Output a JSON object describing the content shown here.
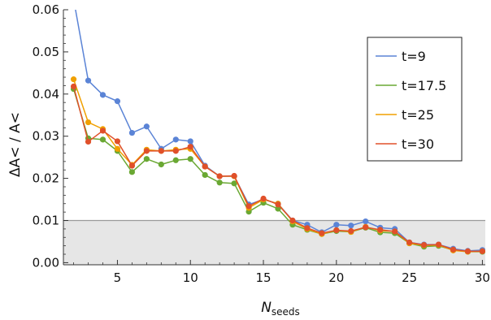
{
  "chart_data": {
    "type": "line",
    "xlabel": {
      "main": "N",
      "sub": "seeds"
    },
    "ylabel": "ΔA< / A<",
    "xlim": [
      1.3,
      30.2
    ],
    "ylim": [
      -0.0005,
      0.06
    ],
    "xticks": [
      5,
      10,
      15,
      20,
      25,
      30
    ],
    "xtick_labels": [
      "5",
      "10",
      "15",
      "20",
      "25",
      "30"
    ],
    "yticks": [
      0.0,
      0.01,
      0.02,
      0.03,
      0.04,
      0.05,
      0.06
    ],
    "ytick_labels": [
      "0.00",
      "0.01",
      "0.02",
      "0.03",
      "0.04",
      "0.05",
      "0.06"
    ],
    "threshold": {
      "y": 0.01,
      "color": "#e6e6e6",
      "line_color": "#9a9a9a"
    },
    "legend": {
      "position": "right-upper"
    },
    "x": [
      2,
      3,
      4,
      5,
      6,
      7,
      8,
      9,
      10,
      11,
      12,
      13,
      14,
      15,
      16,
      17,
      18,
      19,
      20,
      21,
      22,
      23,
      24,
      25,
      26,
      27,
      28,
      29,
      30
    ],
    "series": [
      {
        "name": "t=9",
        "color": "#5b84d6",
        "start": [
          2,
          0.0625
        ],
        "values": [
          0.0625,
          0.0432,
          0.0398,
          0.0383,
          0.0308,
          0.0323,
          0.027,
          0.0292,
          0.0288,
          0.023,
          0.0205,
          0.0205,
          0.0138,
          0.015,
          0.014,
          0.01,
          0.009,
          0.0072,
          0.009,
          0.0088,
          0.0098,
          0.0083,
          0.008,
          0.0048,
          0.0043,
          0.0043,
          0.0033,
          0.0028,
          0.003
        ],
        "markers_from_index": 1
      },
      {
        "name": "t=17.5",
        "color": "#6aa833",
        "values": [
          0.0412,
          0.0295,
          0.0292,
          0.0265,
          0.0215,
          0.0246,
          0.0233,
          0.0243,
          0.0246,
          0.0208,
          0.019,
          0.0188,
          0.0121,
          0.0142,
          0.0128,
          0.009,
          0.0078,
          0.0068,
          0.0075,
          0.0073,
          0.0083,
          0.0072,
          0.007,
          0.0046,
          0.0038,
          0.004,
          0.003,
          0.0026,
          0.0026
        ]
      },
      {
        "name": "t=25",
        "color": "#f0a000",
        "values": [
          0.0435,
          0.0333,
          0.0317,
          0.027,
          0.0232,
          0.0268,
          0.0265,
          0.0268,
          0.027,
          0.0228,
          0.0205,
          0.0205,
          0.013,
          0.015,
          0.014,
          0.0098,
          0.008,
          0.0068,
          0.0077,
          0.0073,
          0.0085,
          0.0076,
          0.0074,
          0.0046,
          0.0041,
          0.0042,
          0.0029,
          0.0026,
          0.0027
        ]
      },
      {
        "name": "t=30",
        "color": "#e0502a",
        "values": [
          0.0418,
          0.0287,
          0.0313,
          0.0288,
          0.023,
          0.0265,
          0.0265,
          0.0265,
          0.0275,
          0.0228,
          0.0205,
          0.0206,
          0.0134,
          0.0152,
          0.0138,
          0.01,
          0.0082,
          0.007,
          0.0077,
          0.0075,
          0.0084,
          0.0078,
          0.0074,
          0.0048,
          0.0042,
          0.0043,
          0.0031,
          0.0027,
          0.0027
        ]
      }
    ]
  }
}
